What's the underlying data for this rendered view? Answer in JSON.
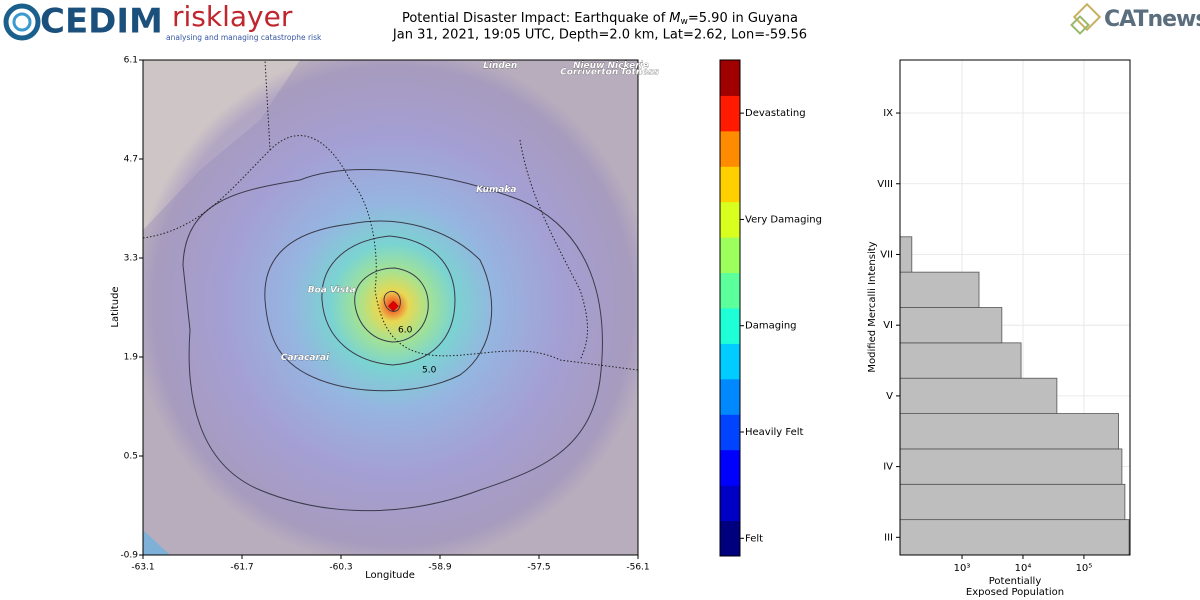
{
  "header": {
    "logo_left": "CEDIM",
    "logo_middle": "risklayer",
    "logo_middle_tagline": "analysing and managing catastrophe risk",
    "logo_right": "CATnews",
    "title_prefix": "Potential Disaster Impact: Earthquake of",
    "magnitude_symbol": "M",
    "magnitude_subscript": "w",
    "title_suffix": "=5.90 in Guyana",
    "subtitle": "Jan 31, 2021, 19:05 UTC, Depth=2.0 km, Lat=2.62, Lon=-59.56"
  },
  "map": {
    "xlabel": "Longitude",
    "ylabel": "Latitude",
    "xlim": [
      -63.1,
      -56.1
    ],
    "ylim": [
      -0.9,
      6.1
    ],
    "xticks": [
      -63.1,
      -61.7,
      -60.3,
      -58.9,
      -57.5,
      -56.1
    ],
    "yticks": [
      -0.9,
      0.5,
      1.9,
      3.3,
      4.7,
      6.1
    ],
    "epicenter": {
      "lon": -59.56,
      "lat": 2.62,
      "color": "#e00000"
    },
    "places": [
      {
        "name": "Linden",
        "lon": -58.29,
        "lat": 6.02
      },
      {
        "name": "Nieuw Nickerie",
        "lon": -57.02,
        "lat": 6.02
      },
      {
        "name": "Corriverton",
        "lon": -57.2,
        "lat": 5.93
      },
      {
        "name": "Totness",
        "lon": -56.35,
        "lat": 5.93
      },
      {
        "name": "Kumaka",
        "lon": -58.39,
        "lat": 4.27
      },
      {
        "name": "Boa Vista",
        "lon": -60.77,
        "lat": 2.85
      },
      {
        "name": "Caracarai",
        "lon": -61.15,
        "lat": 1.89
      }
    ],
    "contour_labels": [
      "6.0",
      "5.0"
    ]
  },
  "colorbar": {
    "lim": [
      0,
      14
    ],
    "colors": [
      "#00007f",
      "#0000c4",
      "#0000ff",
      "#0044ff",
      "#0088ff",
      "#00ccff",
      "#1effd8",
      "#5bff9c",
      "#9cff5b",
      "#d8ff1e",
      "#ffd000",
      "#ff8c00",
      "#ff1a00",
      "#a00000"
    ],
    "ticks": [
      {
        "value": 0.5,
        "label": "Felt"
      },
      {
        "value": 3.5,
        "label": "Heavily Felt"
      },
      {
        "value": 6.5,
        "label": "Damaging"
      },
      {
        "value": 9.5,
        "label": "Very Damaging"
      },
      {
        "value": 12.5,
        "label": "Devastating"
      }
    ]
  },
  "chart_data": {
    "type": "histogram",
    "orientation": "horizontal",
    "xlabel": [
      "Potentially",
      "Exposed Population"
    ],
    "ylabel": "Modified Mercalli Intensity",
    "bins": [
      2.75,
      3.25,
      3.75,
      4.25,
      4.75,
      5.25,
      5.75,
      6.25,
      6.75,
      7.25
    ],
    "values": [
      550000,
      470000,
      420000,
      370000,
      36000,
      9300,
      4500,
      1900,
      150
    ],
    "color": "#bebebe",
    "edge_color": "#555555",
    "xscale": "log",
    "xlim": [
      96,
      570000
    ],
    "xticks": [
      {
        "value": 1000,
        "label": "10³"
      },
      {
        "value": 10000,
        "label": "10⁴"
      },
      {
        "value": 100000,
        "label": "10⁵"
      }
    ],
    "ylim": [
      2.75,
      9.75
    ],
    "yticks": [
      {
        "value": 3,
        "label": "III"
      },
      {
        "value": 4,
        "label": "IV"
      },
      {
        "value": 5,
        "label": "V"
      },
      {
        "value": 6,
        "label": "VI"
      },
      {
        "value": 7,
        "label": "VII"
      },
      {
        "value": 8,
        "label": "VIII"
      },
      {
        "value": 9,
        "label": "IX"
      }
    ],
    "grid": true
  }
}
